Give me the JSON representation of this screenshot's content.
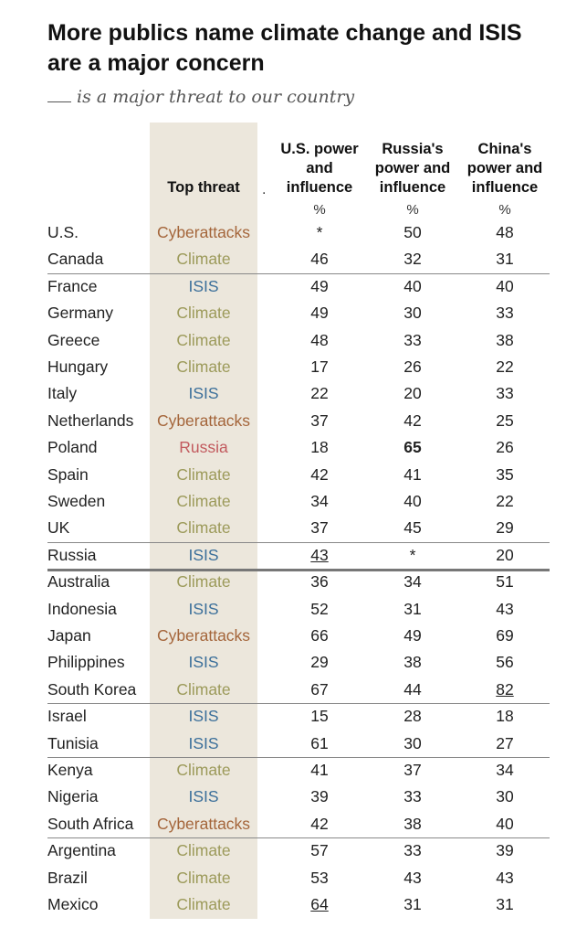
{
  "title_line1": "More publics name climate change and ISIS",
  "title_line2": "are a major concern",
  "subtitle": "is a major threat to our country",
  "colors": {
    "Cyberattacks": "#a4653a",
    "Climate": "#9c9a5a",
    "ISIS": "#3b6f9a",
    "Russia": "#c25a5e"
  },
  "headers": {
    "top_threat": "Top threat",
    "us": [
      "U.S. power",
      "and",
      "influence"
    ],
    "russia": [
      "Russia's",
      "power and",
      "influence"
    ],
    "china": [
      "China's",
      "power and",
      "influence"
    ],
    "percent": "%",
    "dot": "."
  },
  "chart_data": {
    "type": "table",
    "columns": [
      "Top threat",
      "U.S. power and influence",
      "Russia's power and influence",
      "China's power and influence"
    ],
    "rows": [
      {
        "country": "U.S.",
        "threat": "Cyberattacks",
        "us": "*",
        "ru": "50",
        "cn": "48"
      },
      {
        "country": "Canada",
        "threat": "Climate",
        "us": "46",
        "ru": "32",
        "cn": "31"
      },
      {
        "country": "France",
        "threat": "ISIS",
        "us": "49",
        "ru": "40",
        "cn": "40"
      },
      {
        "country": "Germany",
        "threat": "Climate",
        "us": "49",
        "ru": "30",
        "cn": "33"
      },
      {
        "country": "Greece",
        "threat": "Climate",
        "us": "48",
        "ru": "33",
        "cn": "38"
      },
      {
        "country": "Hungary",
        "threat": "Climate",
        "us": "17",
        "ru": "26",
        "cn": "22"
      },
      {
        "country": "Italy",
        "threat": "ISIS",
        "us": "22",
        "ru": "20",
        "cn": "33"
      },
      {
        "country": "Netherlands",
        "threat": "Cyberattacks",
        "us": "37",
        "ru": "42",
        "cn": "25"
      },
      {
        "country": "Poland",
        "threat": "Russia",
        "us": "18",
        "ru": "65",
        "cn": "26"
      },
      {
        "country": "Spain",
        "threat": "Climate",
        "us": "42",
        "ru": "41",
        "cn": "35"
      },
      {
        "country": "Sweden",
        "threat": "Climate",
        "us": "34",
        "ru": "40",
        "cn": "22"
      },
      {
        "country": "UK",
        "threat": "Climate",
        "us": "37",
        "ru": "45",
        "cn": "29"
      },
      {
        "country": "Russia",
        "threat": "ISIS",
        "us": "43",
        "ru": "*",
        "cn": "20"
      },
      {
        "country": "Australia",
        "threat": "Climate",
        "us": "36",
        "ru": "34",
        "cn": "51"
      },
      {
        "country": "Indonesia",
        "threat": "ISIS",
        "us": "52",
        "ru": "31",
        "cn": "43"
      },
      {
        "country": "Japan",
        "threat": "Cyberattacks",
        "us": "66",
        "ru": "49",
        "cn": "69"
      },
      {
        "country": "Philippines",
        "threat": "ISIS",
        "us": "29",
        "ru": "38",
        "cn": "56"
      },
      {
        "country": "South Korea",
        "threat": "Climate",
        "us": "67",
        "ru": "44",
        "cn": "82"
      },
      {
        "country": "Israel",
        "threat": "ISIS",
        "us": "15",
        "ru": "28",
        "cn": "18"
      },
      {
        "country": "Tunisia",
        "threat": "ISIS",
        "us": "61",
        "ru": "30",
        "cn": "27"
      },
      {
        "country": "Kenya",
        "threat": "Climate",
        "us": "41",
        "ru": "37",
        "cn": "34"
      },
      {
        "country": "Nigeria",
        "threat": "ISIS",
        "us": "39",
        "ru": "33",
        "cn": "30"
      },
      {
        "country": "South Africa",
        "threat": "Cyberattacks",
        "us": "42",
        "ru": "38",
        "cn": "40"
      },
      {
        "country": "Argentina",
        "threat": "Climate",
        "us": "57",
        "ru": "33",
        "cn": "39"
      },
      {
        "country": "Brazil",
        "threat": "Climate",
        "us": "53",
        "ru": "43",
        "cn": "43"
      },
      {
        "country": "Mexico",
        "threat": "Climate",
        "us": "64",
        "ru": "31",
        "cn": "31"
      }
    ],
    "bold_cells": [
      {
        "country": "Poland",
        "column": "ru"
      }
    ],
    "underlined_cells": [
      {
        "country": "Russia",
        "column": "us"
      },
      {
        "country": "South Korea",
        "column": "cn"
      },
      {
        "country": "Mexico",
        "column": "us"
      }
    ]
  }
}
